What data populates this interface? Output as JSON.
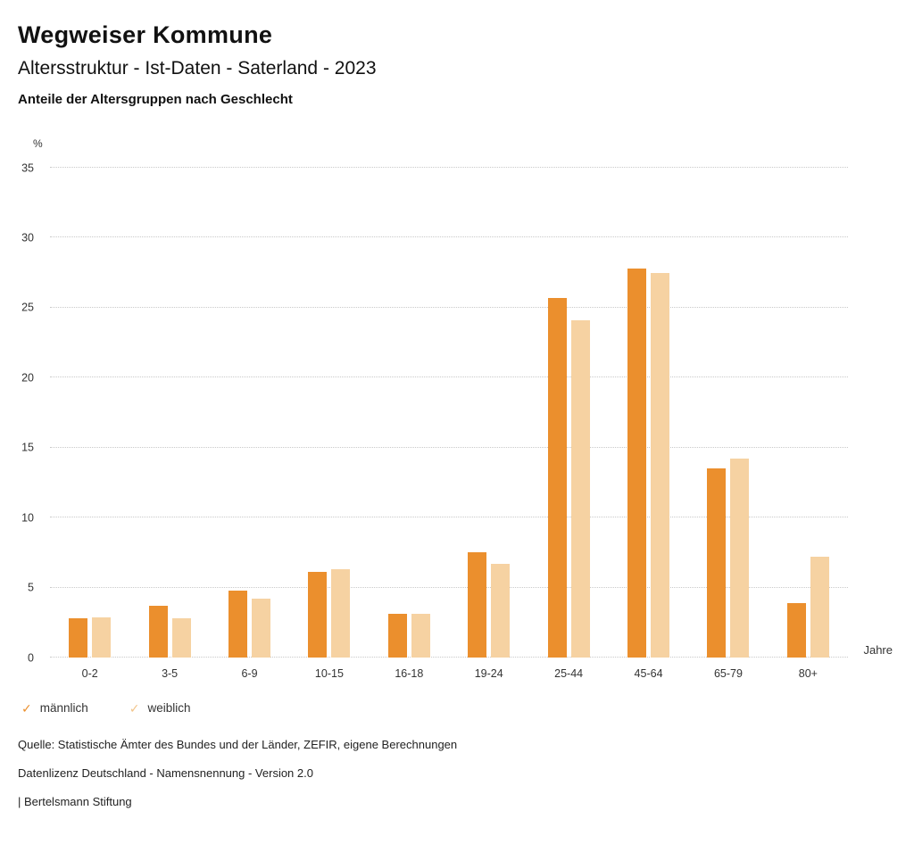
{
  "header": {
    "title": "Wegweiser Kommune",
    "subtitle": "Altersstruktur - Ist-Daten - Saterland - 2023",
    "caption": "Anteile der Altersgruppen nach Geschlecht"
  },
  "chart_data": {
    "type": "bar",
    "title": "Anteile der Altersgruppen nach Geschlecht",
    "categories": [
      "0-2",
      "3-5",
      "6-9",
      "10-15",
      "16-18",
      "19-24",
      "25-44",
      "45-64",
      "65-79",
      "80+"
    ],
    "series": [
      {
        "name": "männlich",
        "color": "#EB8F2D",
        "values": [
          2.8,
          3.7,
          4.8,
          6.1,
          3.1,
          7.5,
          25.7,
          27.8,
          13.5,
          3.9
        ]
      },
      {
        "name": "weiblich",
        "color": "#F6D2A2",
        "values": [
          2.9,
          2.8,
          4.2,
          6.3,
          3.1,
          6.7,
          24.1,
          27.5,
          14.2,
          7.2
        ]
      }
    ],
    "y_unit_label": "%",
    "x_unit_label": "Jahre",
    "ylim": [
      0,
      35
    ],
    "ytick_step": 5,
    "grid": "horizontal-dotted",
    "legend_position": "bottom-left"
  },
  "legend": {
    "items": [
      {
        "label": "männlich",
        "color": "#EB8F2D",
        "check": "✓"
      },
      {
        "label": "weiblich",
        "color": "#F2C48A",
        "check": "✓"
      }
    ]
  },
  "footer": {
    "source": "Quelle: Statistische Ämter des Bundes und der Länder, ZEFIR, eigene Berechnungen",
    "license": "Datenlizenz Deutschland - Namensnennung - Version 2.0",
    "attribution": "| Bertelsmann Stiftung"
  }
}
